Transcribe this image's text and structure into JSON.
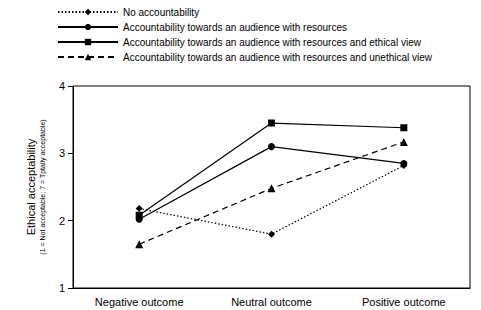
{
  "chart_data": {
    "type": "line",
    "ylabel": "Ethical acceptability",
    "annotations": [
      "(1 = Not acceptable; 7 = Tptally acceptable)"
    ],
    "categories": [
      "Negative outcome",
      "Neutral outcome",
      "Positive outcome"
    ],
    "series": [
      {
        "name": "No accountability",
        "color": "#000000",
        "marker": "diamond",
        "line_style": "dotted",
        "values": [
          2.18,
          1.8,
          2.82
        ]
      },
      {
        "name": "Accountability towards an audience with resources",
        "color": "#000000",
        "marker": "circle",
        "line_style": "solid",
        "values": [
          2.02,
          3.1,
          2.85
        ]
      },
      {
        "name": "Accountability towards an audience with resources and ethical view",
        "color": "#000000",
        "marker": "rect",
        "line_style": "solid",
        "values": [
          2.08,
          3.45,
          3.38
        ]
      },
      {
        "name": "Accountability towards an audience with resources and unethical view",
        "color": "#000000",
        "marker": "triangle",
        "line_style": "dashed",
        "values": [
          1.65,
          2.48,
          3.17
        ]
      }
    ],
    "ylim": [
      1,
      4
    ],
    "yticks": [
      1,
      2,
      3,
      4
    ],
    "grid": false,
    "legend": "top-left"
  }
}
